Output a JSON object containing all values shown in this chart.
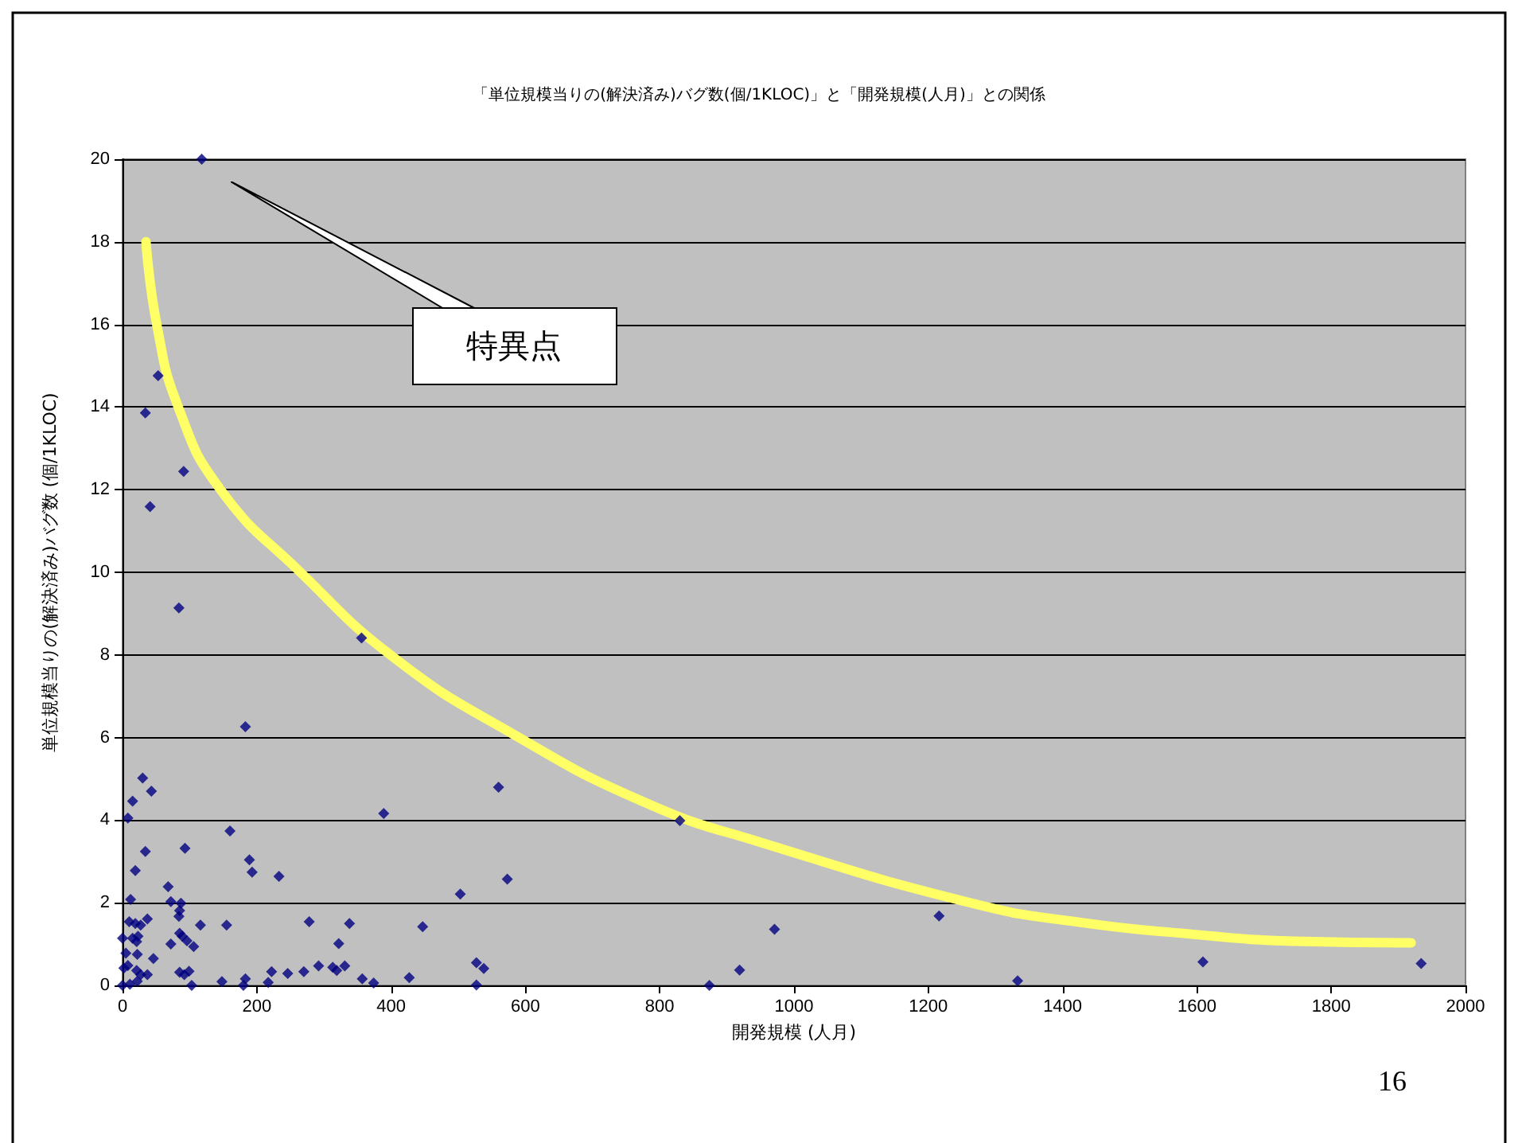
{
  "chart_data": {
    "type": "scatter",
    "title": "「単位規模当りの(解決済み)バグ数(個/1KLOC)」と「開発規模(人月)」との関係",
    "xlabel": "開発規模 (人月)",
    "ylabel": "単位規模当りの(解決済み)バグ数 (個/1KLOC)",
    "xlim": [
      0,
      2000
    ],
    "xticks": [
      0,
      200,
      400,
      600,
      800,
      1000,
      1200,
      1400,
      1600,
      1800,
      2000
    ],
    "ylim": [
      0,
      20
    ],
    "yticks": [
      0,
      2,
      4,
      6,
      8,
      10,
      12,
      14,
      16,
      18,
      20
    ],
    "grid": "y",
    "marker": "diamond",
    "annotations": [
      "特異点",
      "16"
    ],
    "series": [
      {
        "type": "scatter",
        "color": "#000080",
        "x": [
          118,
          53,
          34,
          91,
          41,
          84,
          183,
          356,
          389,
          30,
          43,
          15,
          8,
          160,
          34,
          93,
          189,
          193,
          233,
          19,
          68,
          12,
          72,
          87,
          85,
          84,
          10,
          19,
          27,
          37,
          116,
          155,
          278,
          338,
          0,
          15,
          23,
          21,
          85,
          89,
          96,
          106,
          72,
          322,
          5,
          22,
          46,
          2,
          8,
          21,
          27,
          37,
          85,
          92,
          99,
          222,
          246,
          270,
          292,
          313,
          319,
          331,
          357,
          374,
          0,
          11,
          22,
          103,
          148,
          183,
          180,
          217,
          560,
          573,
          503,
          447,
          427,
          527,
          538,
          527,
          830,
          874,
          919,
          971,
          1216,
          1333,
          1609,
          1934
        ],
        "values": [
          20,
          14.76,
          13.86,
          12.44,
          11.59,
          9.14,
          6.26,
          8.41,
          4.16,
          5.02,
          4.7,
          4.46,
          4.05,
          3.74,
          3.24,
          3.32,
          3.04,
          2.74,
          2.64,
          2.78,
          2.39,
          2.08,
          2.03,
          1.99,
          1.81,
          1.67,
          1.54,
          1.5,
          1.46,
          1.61,
          1.46,
          1.46,
          1.54,
          1.5,
          1.14,
          1.14,
          1.19,
          1.06,
          1.26,
          1.19,
          1.08,
          0.94,
          1,
          1.01,
          0.78,
          0.75,
          0.65,
          0.42,
          0.48,
          0.36,
          0.26,
          0.26,
          0.32,
          0.26,
          0.34,
          0.33,
          0.29,
          0.33,
          0.47,
          0.44,
          0.36,
          0.47,
          0.16,
          0.06,
          0,
          0.03,
          0.1,
          0,
          0.09,
          0.16,
          0,
          0.07,
          4.8,
          2.57,
          2.21,
          1.42,
          0.19,
          0.55,
          0.41,
          0.01,
          3.99,
          0,
          0.37,
          1.36,
          1.68,
          0.11,
          0.57,
          0.53
        ]
      },
      {
        "type": "line",
        "color": "#ffff66",
        "marker": "none",
        "x": [
          35,
          51,
          83,
          146,
          265,
          407,
          581,
          779,
          953,
          1270,
          1429,
          1586,
          1745,
          1919
        ],
        "values": [
          18,
          16,
          14,
          12,
          10,
          7.9,
          6.09,
          4.42,
          3.45,
          1.97,
          1.52,
          1.25,
          1.07,
          1.03
        ]
      }
    ]
  }
}
